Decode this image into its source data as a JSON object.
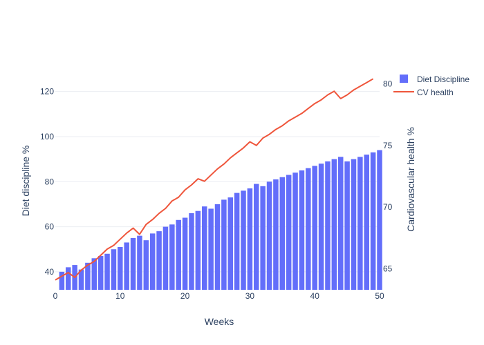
{
  "chart_data": {
    "type": "bar",
    "xlabel": "Weeks",
    "ylabel": "Diet discipline %",
    "y2label": "Cardiovascular health %",
    "xlim": [
      0,
      50
    ],
    "ylim": [
      32,
      130
    ],
    "y2lim": [
      63.3,
      81.2
    ],
    "x_ticks": [
      0,
      10,
      20,
      30,
      40,
      50
    ],
    "y_ticks": [
      40,
      60,
      80,
      100,
      120
    ],
    "y2_ticks": [
      65,
      70,
      75,
      80
    ],
    "y2_tick_labels": [
      "65",
      "70",
      "75",
      "80"
    ],
    "grid": true,
    "legend_position": "top-right",
    "colors": {
      "bar": "#636efa",
      "line": "#ef553b"
    },
    "series": [
      {
        "name": "Diet Discipline",
        "type": "bar",
        "axis": "y",
        "x": [
          1,
          2,
          3,
          4,
          5,
          6,
          7,
          8,
          9,
          10,
          11,
          12,
          13,
          14,
          15,
          16,
          17,
          18,
          19,
          20,
          21,
          22,
          23,
          24,
          25,
          26,
          27,
          28,
          29,
          30,
          31,
          32,
          33,
          34,
          35,
          36,
          37,
          38,
          39,
          40,
          41,
          42,
          43,
          44,
          45,
          46,
          47,
          48,
          49,
          50
        ],
        "values": [
          40,
          42,
          43,
          41,
          44,
          46,
          47,
          48,
          50,
          51,
          53,
          55,
          56,
          54,
          57,
          58,
          60,
          61,
          63,
          64,
          66,
          67,
          69,
          68,
          70,
          72,
          73,
          75,
          76,
          77,
          79,
          78,
          80,
          81,
          82,
          83,
          84,
          85,
          86,
          87,
          88,
          89,
          90,
          91,
          89,
          90,
          91,
          92,
          93,
          94
        ]
      },
      {
        "name": "CV health",
        "type": "line",
        "axis": "y2",
        "x": [
          0,
          1,
          2,
          3,
          4,
          5,
          6,
          7,
          8,
          9,
          10,
          11,
          12,
          13,
          14,
          15,
          16,
          17,
          18,
          19,
          20,
          21,
          22,
          23,
          24,
          25,
          26,
          27,
          28,
          29,
          30,
          31,
          32,
          33,
          34,
          35,
          36,
          37,
          38,
          39,
          40,
          41,
          42,
          43,
          44,
          45,
          46,
          47,
          48,
          49
        ],
        "values": [
          64.1,
          64.4,
          64.7,
          64.3,
          64.9,
          65.3,
          65.6,
          66.1,
          66.6,
          66.9,
          67.4,
          67.9,
          68.3,
          67.8,
          68.6,
          69.0,
          69.5,
          69.9,
          70.5,
          70.8,
          71.4,
          71.8,
          72.3,
          72.1,
          72.6,
          73.1,
          73.5,
          74.0,
          74.4,
          74.8,
          75.3,
          75.0,
          75.6,
          75.9,
          76.3,
          76.6,
          77.0,
          77.3,
          77.6,
          78.0,
          78.4,
          78.7,
          79.1,
          79.4,
          78.8,
          79.1,
          79.5,
          79.8,
          80.1,
          80.4
        ]
      }
    ]
  }
}
